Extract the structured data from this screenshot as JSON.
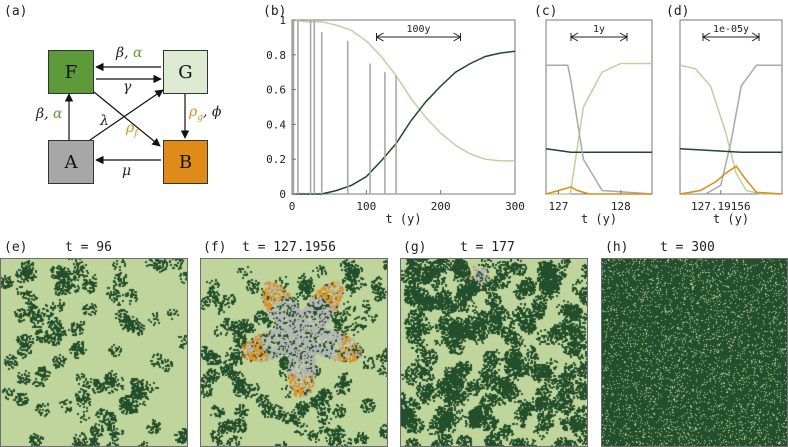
{
  "panel_labels": {
    "a": "(a)",
    "b": "(b)",
    "c": "(c)",
    "d": "(d)",
    "e": "(e)",
    "f": "(f)",
    "g": "(g)",
    "h": "(h)"
  },
  "diagram": {
    "nodes": {
      "F": "F",
      "G": "G",
      "A": "A",
      "B": "B"
    },
    "colors": {
      "F": "#5d9a3a",
      "G": "#dbead0",
      "A": "#a7a7a7",
      "B": "#de8b17"
    },
    "edge_labels": {
      "G_to_F_beta": "β,",
      "G_to_F_alpha": "α",
      "F_to_G": "γ",
      "A_to_F_beta": "β,",
      "A_to_F_alpha": "α",
      "A_to_G": "λ",
      "F_to_B": "ρ",
      "F_to_B_sub": "f",
      "G_to_B": "ρ",
      "G_to_B_sub": "g",
      "G_to_B_phi": ", ϕ",
      "B_to_A": "μ"
    }
  },
  "timeseries": {
    "xlabel": "t  (y)",
    "b": {
      "scale_label": "100y",
      "x_ticks": [
        "0",
        "100",
        "200",
        "300"
      ],
      "y_ticks": [
        "0",
        "0.2",
        "0.4",
        "0.6",
        "0.8",
        "1"
      ]
    },
    "c": {
      "scale_label": "1y",
      "x_ticks": [
        "127",
        "128"
      ]
    },
    "d": {
      "scale_label": "1e-05y",
      "x_ticks": [
        "127.19156"
      ]
    }
  },
  "chart_data": [
    {
      "type": "line",
      "panel": "b",
      "xlabel": "t  (y)",
      "ylabel": "",
      "xlim": [
        0,
        300
      ],
      "ylim": [
        0,
        1
      ],
      "series": [
        {
          "color": "#b9d49a",
          "x": [
            0,
            20,
            40,
            60,
            80,
            100,
            120,
            140,
            160,
            180,
            200,
            220,
            240,
            260,
            280,
            300
          ],
          "values": [
            1.0,
            0.99,
            0.99,
            0.97,
            0.94,
            0.88,
            0.79,
            0.68,
            0.55,
            0.44,
            0.35,
            0.28,
            0.23,
            0.2,
            0.19,
            0.19
          ]
        },
        {
          "color": "#1d4a2a",
          "x": [
            0,
            20,
            40,
            60,
            80,
            100,
            120,
            140,
            160,
            180,
            200,
            220,
            240,
            260,
            280,
            300
          ],
          "values": [
            0.0,
            0.0,
            0.0,
            0.02,
            0.05,
            0.1,
            0.19,
            0.29,
            0.42,
            0.53,
            0.62,
            0.7,
            0.75,
            0.79,
            0.81,
            0.82
          ]
        },
        {
          "color": "#a9a9a9",
          "spikes_x": [
            2,
            8,
            25,
            30,
            40,
            75,
            105,
            125,
            140
          ],
          "spikes_y": [
            1.0,
            1.0,
            1.0,
            1.0,
            0.93,
            0.88,
            0.75,
            0.7,
            0.68
          ]
        }
      ]
    },
    {
      "type": "line",
      "panel": "c",
      "xlabel": "t  (y)",
      "xlim": [
        126.8,
        128.5
      ],
      "ylim": [
        0,
        1
      ],
      "series": [
        {
          "color": "#b9d49a",
          "x": [
            126.8,
            127.19,
            127.4,
            127.7,
            128.0,
            128.5
          ],
          "values": [
            0.0,
            0.0,
            0.5,
            0.7,
            0.75,
            0.75
          ]
        },
        {
          "color": "#1d4a2a",
          "x": [
            126.8,
            127.2,
            128.5
          ],
          "values": [
            0.26,
            0.24,
            0.24
          ]
        },
        {
          "color": "#a9a9a9",
          "x": [
            126.8,
            127.15,
            127.2,
            127.4,
            127.7,
            128.5
          ],
          "values": [
            0.74,
            0.74,
            0.65,
            0.2,
            0.02,
            0.0
          ]
        },
        {
          "color": "#de8b17",
          "x": [
            126.8,
            127.2,
            127.3,
            127.5,
            128.5
          ],
          "values": [
            0.0,
            0.04,
            0.02,
            0.0,
            0.0
          ]
        }
      ]
    },
    {
      "type": "line",
      "panel": "d",
      "xlabel": "t  (y)",
      "ylim": [
        0,
        1
      ],
      "series": [
        {
          "color": "#b9d49a",
          "x": [
            0,
            0.15,
            0.3,
            0.45,
            0.55,
            0.65,
            0.8,
            1
          ],
          "values": [
            0.74,
            0.72,
            0.62,
            0.35,
            0.12,
            0.02,
            0.0,
            0.0
          ]
        },
        {
          "color": "#a9a9a9",
          "x": [
            0,
            0.25,
            0.4,
            0.5,
            0.6,
            0.75,
            1
          ],
          "values": [
            0.0,
            0.0,
            0.05,
            0.3,
            0.62,
            0.74,
            0.74
          ]
        },
        {
          "color": "#1d4a2a",
          "x": [
            0,
            0.3,
            0.6,
            1
          ],
          "values": [
            0.26,
            0.25,
            0.24,
            0.24
          ]
        },
        {
          "color": "#de8b17",
          "x": [
            0,
            0.2,
            0.35,
            0.45,
            0.55,
            0.65,
            0.75,
            1
          ],
          "values": [
            0.0,
            0.02,
            0.07,
            0.12,
            0.16,
            0.08,
            0.01,
            0.0
          ]
        }
      ]
    }
  ],
  "snapshots": {
    "e": {
      "title": "t = 96"
    },
    "f": {
      "title": "t = 127.1956"
    },
    "g": {
      "title": "t = 177"
    },
    "h": {
      "title": "t = 300"
    },
    "colors": {
      "grass": "#bfd59b",
      "forest": "#234f2c",
      "ash": "#b5b5b5",
      "burning": "#e0901b"
    }
  }
}
